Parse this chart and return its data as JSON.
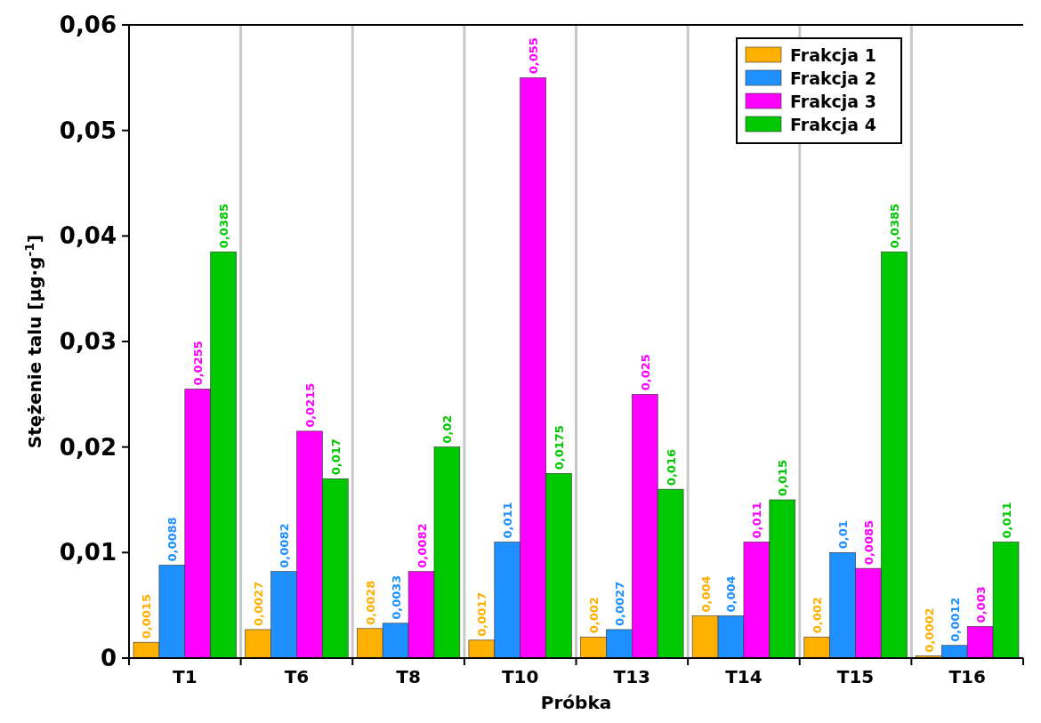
{
  "chart_data": {
    "type": "bar",
    "xlabel": "Próbka",
    "ylabel": "Stężenie talu [µg·g$^{-1}$]",
    "categories": [
      "T1",
      "T6",
      "T8",
      "T10",
      "T13",
      "T14",
      "T15",
      "T16"
    ],
    "series": [
      {
        "name": "Frakcja 1",
        "color": "#ffb000",
        "values": [
          0.0015,
          0.0027,
          0.0028,
          0.0017,
          0.002,
          0.004,
          0.002,
          0.0002
        ],
        "value_labels": [
          "0,0015",
          "0,0027",
          "0,0028",
          "0,0017",
          "0,002",
          "0,004",
          "0,002",
          "0,0002"
        ]
      },
      {
        "name": "Frakcja 2",
        "color": "#1e90ff",
        "values": [
          0.0088,
          0.0082,
          0.0033,
          0.011,
          0.0027,
          0.004,
          0.01,
          0.0012
        ],
        "value_labels": [
          "0,0088",
          "0,0082",
          "0,0033",
          "0,011",
          "0,0027",
          "0,004",
          "0,01",
          "0,0012"
        ]
      },
      {
        "name": "Frakcja 3",
        "color": "#ff00ff",
        "values": [
          0.0255,
          0.0215,
          0.0082,
          0.055,
          0.025,
          0.011,
          0.0085,
          0.003
        ],
        "value_labels": [
          "0,0255",
          "0,0215",
          "0,0082",
          "0,055",
          "0,025",
          "0,011",
          "0,0085",
          "0,003"
        ]
      },
      {
        "name": "Frakcja 4",
        "color": "#00c800",
        "values": [
          0.0385,
          0.017,
          0.02,
          0.0175,
          0.016,
          0.015,
          0.0385,
          0.011
        ],
        "value_labels": [
          "0,0385",
          "0,017",
          "0,02",
          "0,0175",
          "0,016",
          "0,015",
          "0,0385",
          "0,011"
        ]
      }
    ],
    "ylim": [
      0,
      0.06
    ],
    "yticks": [
      0,
      {
        "value": 0.01,
        "label": "0,01"
      },
      {
        "value": 0.02,
        "label": "0,02"
      },
      {
        "value": 0.03,
        "label": "0,03"
      },
      {
        "value": 0.04,
        "label": "0,04"
      },
      {
        "value": 0.05,
        "label": "0,05"
      },
      {
        "value": 0.06,
        "label": "0,06"
      }
    ],
    "grid": "x",
    "legend": "top right"
  }
}
